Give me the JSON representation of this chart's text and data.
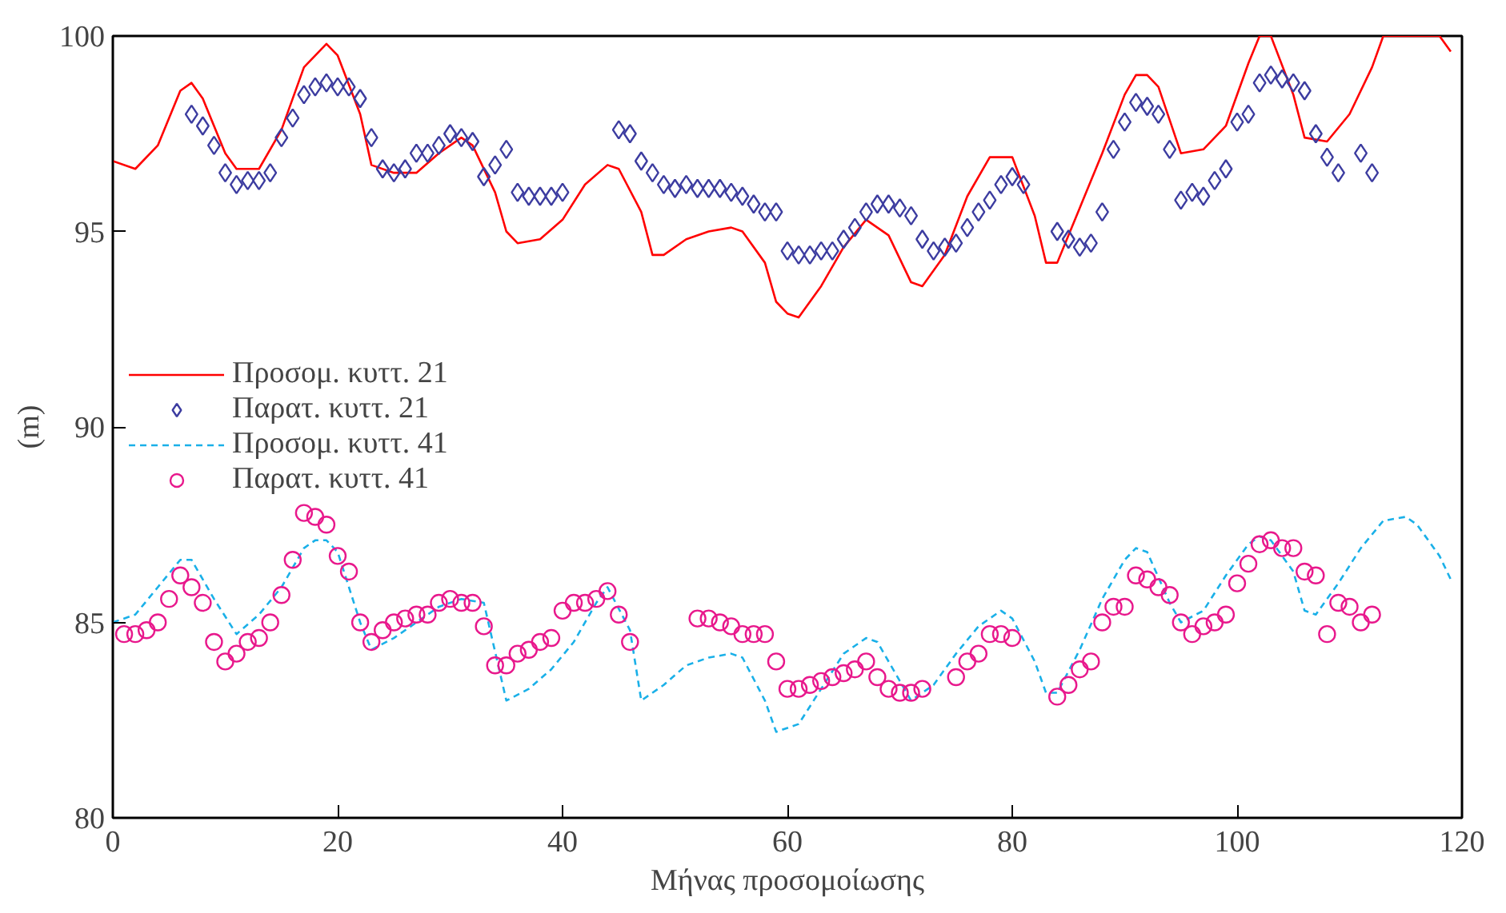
{
  "chart_data": {
    "type": "line",
    "xlabel": "Μήνας προσομοίωσης",
    "ylabel": "(m)",
    "xlim": [
      0,
      120
    ],
    "ylim": [
      80,
      100
    ],
    "xticks": [
      0,
      20,
      40,
      60,
      80,
      100,
      120
    ],
    "yticks": [
      80,
      85,
      90,
      95,
      100
    ],
    "grid": false,
    "legend": "left",
    "series": [
      {
        "name": "Προσομ. κυττ. 21",
        "line_style": "solid",
        "marker": "none",
        "color": "#ff0000",
        "x": [
          0,
          2,
          4,
          6,
          7,
          8,
          10,
          11,
          13,
          15,
          17,
          19,
          20,
          22,
          23,
          25,
          27,
          29,
          31,
          32,
          34,
          35,
          36,
          38,
          40,
          42,
          44,
          45,
          47,
          48,
          49,
          51,
          53,
          55,
          56,
          58,
          59,
          60,
          61,
          63,
          65,
          67,
          69,
          71,
          72,
          74,
          76,
          78,
          80,
          82,
          83,
          84,
          86,
          88,
          90,
          91,
          92,
          93,
          95,
          97,
          99,
          101,
          102,
          103,
          105,
          106,
          108,
          110,
          112,
          113,
          118,
          119
        ],
        "values": [
          96.8,
          96.6,
          97.2,
          98.6,
          98.8,
          98.4,
          97.0,
          96.6,
          96.6,
          97.6,
          99.2,
          99.8,
          99.5,
          98.0,
          96.7,
          96.5,
          96.5,
          97.0,
          97.4,
          97.2,
          96.0,
          95.0,
          94.7,
          94.8,
          95.3,
          96.2,
          96.7,
          96.6,
          95.5,
          94.4,
          94.4,
          94.8,
          95.0,
          95.1,
          95.0,
          94.2,
          93.2,
          92.9,
          92.8,
          93.6,
          94.6,
          95.3,
          94.9,
          93.7,
          93.6,
          94.4,
          95.9,
          96.9,
          96.9,
          95.4,
          94.2,
          94.2,
          95.6,
          97.0,
          98.5,
          99.0,
          99.0,
          98.7,
          97.0,
          97.1,
          97.7,
          99.3,
          100,
          100,
          98.5,
          97.4,
          97.3,
          98.0,
          99.2,
          100,
          100,
          99.6
        ]
      },
      {
        "name": "Παρατ. κυττ. 21",
        "type": "scatter",
        "marker": "diamond",
        "color": "#3c3ca0",
        "x": [
          7,
          8,
          9,
          10,
          11,
          12,
          13,
          14,
          15,
          16,
          17,
          18,
          19,
          20,
          21,
          22,
          23,
          24,
          25,
          26,
          27,
          28,
          29,
          30,
          31,
          32,
          33,
          34,
          35,
          36,
          37,
          38,
          39,
          40,
          45,
          46,
          47,
          48,
          49,
          50,
          51,
          52,
          53,
          54,
          55,
          56,
          57,
          58,
          59,
          60,
          61,
          62,
          63,
          64,
          65,
          66,
          67,
          68,
          69,
          70,
          71,
          72,
          73,
          74,
          75,
          76,
          77,
          78,
          79,
          80,
          81,
          84,
          85,
          86,
          87,
          88,
          89,
          90,
          91,
          92,
          93,
          94,
          95,
          96,
          97,
          98,
          99,
          100,
          101,
          102,
          103,
          104,
          105,
          106,
          107,
          108,
          109,
          111,
          112
        ],
        "values": [
          98.0,
          97.7,
          97.2,
          96.5,
          96.2,
          96.3,
          96.3,
          96.5,
          97.4,
          97.9,
          98.5,
          98.7,
          98.8,
          98.7,
          98.7,
          98.4,
          97.4,
          96.6,
          96.5,
          96.6,
          97.0,
          97.0,
          97.2,
          97.5,
          97.4,
          97.3,
          96.4,
          96.7,
          97.1,
          96.0,
          95.9,
          95.9,
          95.9,
          96.0,
          97.6,
          97.5,
          96.8,
          96.5,
          96.2,
          96.1,
          96.2,
          96.1,
          96.1,
          96.1,
          96.0,
          95.9,
          95.7,
          95.5,
          95.5,
          94.5,
          94.4,
          94.4,
          94.5,
          94.5,
          94.8,
          95.1,
          95.5,
          95.7,
          95.7,
          95.6,
          95.4,
          94.8,
          94.5,
          94.6,
          94.7,
          95.1,
          95.5,
          95.8,
          96.2,
          96.4,
          96.2,
          95.0,
          94.8,
          94.6,
          94.7,
          95.5,
          97.1,
          97.8,
          98.3,
          98.2,
          98.0,
          97.1,
          95.8,
          96.0,
          95.9,
          96.3,
          96.6,
          97.8,
          98.0,
          98.8,
          99.0,
          98.9,
          98.8,
          98.6,
          97.5,
          96.9,
          96.5,
          97.0,
          96.5
        ]
      },
      {
        "name": "Προσομ. κυττ. 41",
        "line_style": "dashed",
        "marker": "none",
        "color": "#1ab0e8",
        "x": [
          0,
          2,
          4,
          6,
          7,
          9,
          11,
          13,
          15,
          17,
          18,
          19,
          20,
          22,
          23,
          25,
          27,
          29,
          31,
          33,
          35,
          37,
          39,
          41,
          43,
          44,
          46,
          47,
          49,
          51,
          53,
          55,
          56,
          58,
          59,
          61,
          63,
          65,
          67,
          68,
          70,
          71,
          73,
          75,
          77,
          79,
          80,
          82,
          83,
          84,
          86,
          88,
          90,
          91,
          92,
          94,
          95,
          97,
          99,
          101,
          102,
          103,
          105,
          106,
          107,
          109,
          111,
          113,
          115,
          116,
          118,
          119
        ],
        "values": [
          85.0,
          85.2,
          85.9,
          86.6,
          86.6,
          85.6,
          84.7,
          85.2,
          85.9,
          86.9,
          87.1,
          87.1,
          86.8,
          85.0,
          84.3,
          84.6,
          85.0,
          85.4,
          85.6,
          85.5,
          83.0,
          83.3,
          83.8,
          84.5,
          85.5,
          85.9,
          84.8,
          83.0,
          83.4,
          83.9,
          84.1,
          84.2,
          84.1,
          83.0,
          82.2,
          82.4,
          83.3,
          84.2,
          84.6,
          84.5,
          83.5,
          83.0,
          83.4,
          84.2,
          84.9,
          85.3,
          85.1,
          84.0,
          83.2,
          83.2,
          84.3,
          85.6,
          86.6,
          86.9,
          86.8,
          85.5,
          85.0,
          85.3,
          86.2,
          87.0,
          87.2,
          87.1,
          86.3,
          85.3,
          85.2,
          86.0,
          86.9,
          87.6,
          87.7,
          87.5,
          86.7,
          86.1
        ]
      },
      {
        "name": "Παρατ. κυττ. 41",
        "type": "scatter",
        "marker": "circle",
        "color": "#e8188c",
        "x": [
          1,
          2,
          3,
          4,
          5,
          6,
          7,
          8,
          9,
          10,
          11,
          12,
          13,
          14,
          15,
          16,
          17,
          18,
          19,
          20,
          21,
          22,
          23,
          24,
          25,
          26,
          27,
          28,
          29,
          30,
          31,
          32,
          33,
          34,
          35,
          36,
          37,
          38,
          39,
          40,
          41,
          42,
          43,
          44,
          45,
          46,
          52,
          53,
          54,
          55,
          56,
          57,
          58,
          59,
          60,
          61,
          62,
          63,
          64,
          65,
          66,
          67,
          68,
          69,
          70,
          71,
          72,
          75,
          76,
          77,
          78,
          79,
          80,
          84,
          85,
          86,
          87,
          88,
          89,
          90,
          91,
          92,
          93,
          94,
          95,
          96,
          97,
          98,
          99,
          100,
          101,
          102,
          103,
          104,
          105,
          106,
          107,
          108,
          109,
          110,
          111,
          112
        ],
        "values": [
          84.7,
          84.7,
          84.8,
          85.0,
          85.6,
          86.2,
          85.9,
          85.5,
          84.5,
          84.0,
          84.2,
          84.5,
          84.6,
          85.0,
          85.7,
          86.6,
          87.8,
          87.7,
          87.5,
          86.7,
          86.3,
          85.0,
          84.5,
          84.8,
          85.0,
          85.1,
          85.2,
          85.2,
          85.5,
          85.6,
          85.5,
          85.5,
          84.9,
          83.9,
          83.9,
          84.2,
          84.3,
          84.5,
          84.6,
          85.3,
          85.5,
          85.5,
          85.6,
          85.8,
          85.2,
          84.5,
          85.1,
          85.1,
          85.0,
          84.9,
          84.7,
          84.7,
          84.7,
          84.0,
          83.3,
          83.3,
          83.4,
          83.5,
          83.6,
          83.7,
          83.8,
          84.0,
          83.6,
          83.3,
          83.2,
          83.2,
          83.3,
          83.6,
          84.0,
          84.2,
          84.7,
          84.7,
          84.6,
          83.1,
          83.4,
          83.8,
          84.0,
          85.0,
          85.4,
          85.4,
          86.2,
          86.1,
          85.9,
          85.7,
          85.0,
          84.7,
          84.9,
          85.0,
          85.2,
          86.0,
          86.5,
          87.0,
          87.1,
          86.9,
          86.9,
          86.3,
          86.2,
          84.7,
          85.5,
          85.4,
          85.0,
          85.2
        ]
      }
    ]
  }
}
